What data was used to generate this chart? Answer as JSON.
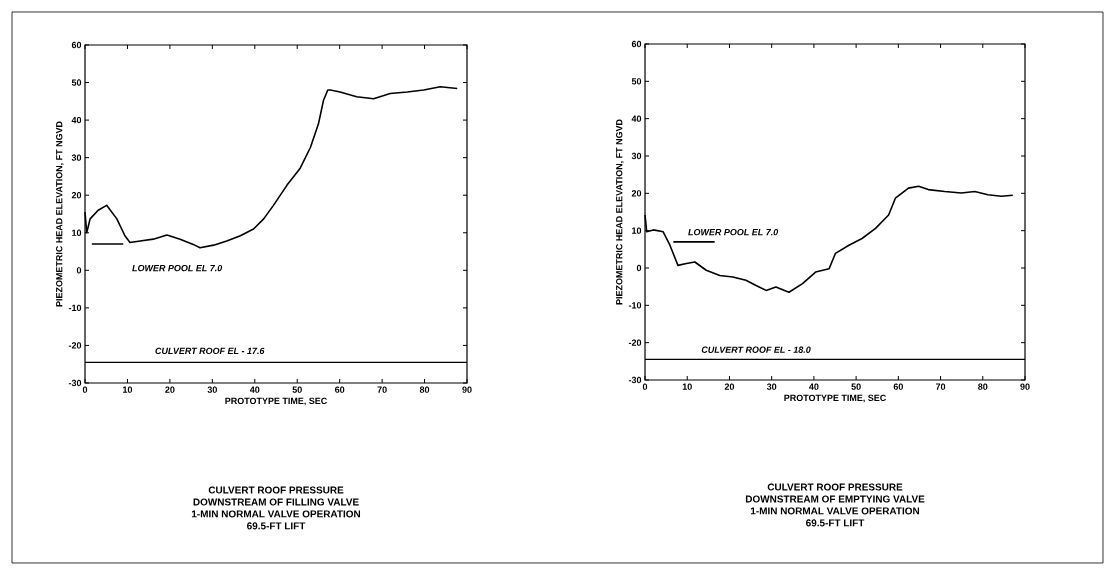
{
  "chart_data": [
    {
      "type": "line",
      "title": "CULVERT ROOF PRESSURE",
      "xlabel": "PROTOTYPE TIME, SEC",
      "ylabel": "PIEZOMETRIC HEAD ELEVATION, FT NGVD",
      "xlim": [
        0,
        90
      ],
      "ylim": [
        -30,
        60
      ],
      "xticks": [
        0,
        10,
        20,
        30,
        40,
        50,
        60,
        70,
        80,
        90
      ],
      "yticks": [
        -30,
        -20,
        -10,
        0,
        10,
        20,
        30,
        40,
        50,
        60
      ],
      "grid": false,
      "marker": "none",
      "line_style": "solid",
      "series": [
        {
          "color": "#000000",
          "x": [
            0,
            0.4,
            1.2,
            3.1,
            5.1,
            7.5,
            9.4,
            10.6,
            13,
            16.1,
            19.3,
            22.4,
            25.5,
            27.1,
            30.3,
            33.4,
            36.6,
            39.7,
            42.1,
            44.4,
            47.6,
            50.7,
            53.1,
            55,
            56.2,
            57.2,
            57.8,
            60.1,
            64,
            68,
            71.9,
            75.9,
            79.8,
            83.7,
            87.7
          ],
          "values": [
            15.5,
            10,
            13.7,
            16,
            17.3,
            13.7,
            9.2,
            7.4,
            7.8,
            8.3,
            9.4,
            8.3,
            6.9,
            6,
            6.7,
            7.8,
            9.2,
            11,
            13.7,
            17.3,
            22.7,
            27.2,
            32.7,
            39,
            45.3,
            48,
            48,
            47.5,
            46.2,
            45.7,
            47.1,
            47.5,
            48,
            48.9,
            48.4
          ]
        },
        {
          "color": "#000000",
          "x": [
            1.6,
            9
          ],
          "values": [
            7,
            7
          ]
        }
      ],
      "ref_lines": [
        {
          "axis": "y",
          "value": -24.5,
          "color": "#000000"
        }
      ],
      "annotations": [
        "LOWER POOL EL 7.0",
        "CULVERT ROOF EL - 17.6",
        "DOWNSTREAM OF FILLING VALVE",
        "1-MIN NORMAL VALVE OPERATION",
        "69.5-FT LIFT"
      ]
    },
    {
      "type": "line",
      "title": "CULVERT ROOF PRESSURE",
      "xlabel": "PROTOTYPE TIME, SEC",
      "ylabel": "PIEZOMETRIC HEAD ELEVATION, FT NGVD",
      "xlim": [
        0,
        90
      ],
      "ylim": [
        -30,
        60
      ],
      "xticks": [
        0,
        10,
        20,
        30,
        40,
        50,
        60,
        70,
        80,
        90
      ],
      "yticks": [
        -30,
        -20,
        -10,
        0,
        10,
        20,
        30,
        40,
        50,
        60
      ],
      "grid": false,
      "marker": "none",
      "line_style": "solid",
      "series": [
        {
          "color": "#000000",
          "x": [
            0,
            0.4,
            2,
            4.3,
            5.9,
            7.8,
            9.8,
            11.8,
            14.5,
            17.7,
            20.8,
            23.9,
            26.3,
            28.7,
            31,
            34.1,
            37.3,
            40.4,
            43.6,
            45.1,
            48.3,
            51.4,
            54.6,
            57.7,
            59.3,
            62.4,
            64.8,
            67.1,
            71,
            74.9,
            78.1,
            81.2,
            84.4,
            87.1
          ],
          "values": [
            14.2,
            9.7,
            10.2,
            9.7,
            6.1,
            0.7,
            1.2,
            1.6,
            -0.6,
            -2,
            -2.4,
            -3.3,
            -4.7,
            -6,
            -5.1,
            -6.5,
            -4.2,
            -1.1,
            -0.2,
            3.9,
            6.1,
            7.9,
            10.6,
            14.2,
            18.7,
            21.4,
            21.9,
            21,
            20.5,
            20.1,
            20.5,
            19.6,
            19.2,
            19.5
          ]
        },
        {
          "color": "#000000",
          "x": [
            6.7,
            16.5
          ],
          "values": [
            7,
            7
          ]
        }
      ],
      "ref_lines": [
        {
          "axis": "y",
          "value": -24.5,
          "color": "#000000"
        }
      ],
      "annotations": [
        "LOWER POOL EL 7.0",
        "CULVERT ROOF EL - 18.0",
        "DOWNSTREAM OF EMPTYING VALVE",
        "1-MIN NORMAL VALVE OPERATION",
        "69.5-FT LIFT"
      ]
    }
  ]
}
